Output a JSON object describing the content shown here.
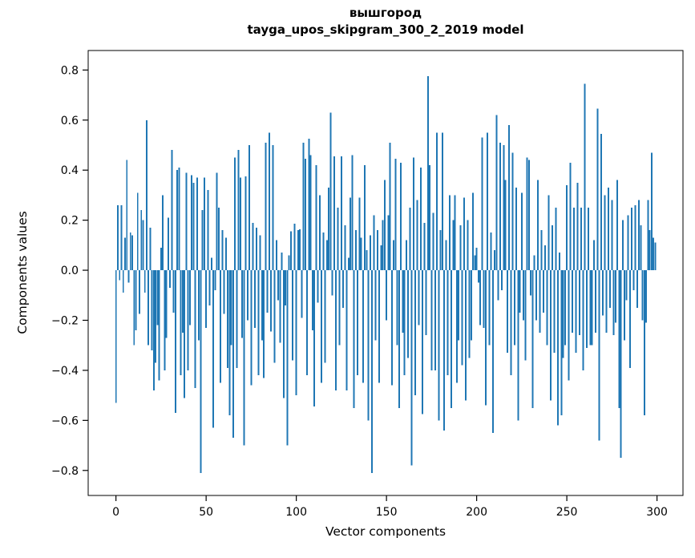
{
  "figure": {
    "title_line1": "вышгород",
    "title_line2": "tayga_upos_skipgram_300_2_2019 model",
    "xlabel": "Vector components",
    "ylabel": "Components values"
  },
  "chart_data": {
    "type": "bar",
    "title": "вышгород — tayga_upos_skipgram_300_2_2019 model",
    "xlabel": "Vector components",
    "ylabel": "Components values",
    "legend": "none",
    "grid": false,
    "bar_color": "#1f77b4",
    "axis_color": "#000000",
    "n_components": 300,
    "xlim": [
      -15.4,
      314.4
    ],
    "ylim": [
      -0.9,
      0.878
    ],
    "bar_width_units": 0.8,
    "xticks": [
      0,
      50,
      100,
      150,
      200,
      250,
      300
    ],
    "xtick_labels": [
      "0",
      "50",
      "100",
      "150",
      "200",
      "250",
      "300"
    ],
    "yticks": [
      0.8,
      0.6,
      0.4,
      0.2,
      0.0,
      -0.2,
      -0.4,
      -0.6,
      -0.8
    ],
    "ytick_labels": [
      "0.8",
      "0.6",
      "0.4",
      "0.2",
      "0.0",
      "−0.2",
      "−0.4",
      "−0.6",
      "−0.8"
    ],
    "values": [
      -0.53,
      0.26,
      -0.04,
      0.26,
      -0.09,
      0.13,
      0.44,
      -0.05,
      0.15,
      0.14,
      -0.3,
      -0.24,
      0.31,
      -0.175,
      0.24,
      0.2,
      -0.09,
      0.6,
      -0.3,
      0.17,
      -0.32,
      -0.48,
      -0.37,
      -0.22,
      -0.44,
      0.09,
      0.3,
      -0.4,
      -0.27,
      0.21,
      -0.07,
      0.48,
      -0.17,
      -0.57,
      0.4,
      0.41,
      -0.42,
      -0.25,
      -0.51,
      0.39,
      -0.4,
      -0.22,
      0.38,
      0.35,
      -0.47,
      0.37,
      -0.28,
      -0.81,
      0.24,
      0.37,
      -0.23,
      0.32,
      -0.14,
      0.05,
      -0.63,
      -0.08,
      0.39,
      0.25,
      -0.45,
      0.16,
      -0.175,
      0.13,
      -0.39,
      -0.58,
      -0.3,
      -0.67,
      0.45,
      -0.39,
      0.48,
      0.37,
      -0.27,
      -0.7,
      0.375,
      -0.2,
      0.5,
      -0.46,
      0.19,
      -0.23,
      0.17,
      -0.42,
      0.14,
      -0.28,
      -0.43,
      0.51,
      -0.17,
      0.55,
      -0.245,
      0.5,
      -0.37,
      0.12,
      -0.12,
      -0.29,
      0.07,
      -0.51,
      -0.14,
      -0.7,
      0.06,
      0.156,
      -0.36,
      0.186,
      -0.5,
      0.16,
      0.163,
      -0.19,
      0.51,
      0.445,
      -0.42,
      0.525,
      0.46,
      -0.24,
      -0.545,
      0.42,
      -0.13,
      0.3,
      -0.45,
      0.15,
      -0.37,
      0.12,
      0.33,
      0.63,
      -0.1,
      0.455,
      -0.48,
      0.25,
      -0.3,
      0.455,
      -0.15,
      0.18,
      -0.48,
      0.05,
      0.29,
      0.46,
      -0.55,
      0.16,
      -0.42,
      0.29,
      0.13,
      -0.45,
      0.42,
      0.08,
      -0.6,
      0.14,
      -0.81,
      0.22,
      -0.28,
      0.16,
      -0.45,
      0.1,
      0.2,
      0.36,
      -0.2,
      0.22,
      0.51,
      -0.46,
      0.12,
      0.445,
      -0.3,
      -0.55,
      0.43,
      -0.25,
      -0.42,
      0.12,
      -0.35,
      0.25,
      -0.78,
      0.45,
      -0.5,
      0.28,
      -0.22,
      0.41,
      -0.575,
      0.19,
      -0.26,
      0.775,
      0.42,
      -0.4,
      0.23,
      -0.4,
      0.55,
      -0.6,
      0.16,
      0.55,
      -0.64,
      0.12,
      -0.42,
      0.3,
      -0.55,
      0.2,
      0.3,
      -0.45,
      -0.28,
      0.18,
      -0.38,
      0.29,
      -0.52,
      0.2,
      -0.35,
      -0.28,
      0.31,
      0.06,
      0.09,
      -0.05,
      -0.22,
      0.53,
      -0.23,
      -0.54,
      0.55,
      -0.3,
      0.15,
      -0.65,
      0.08,
      0.62,
      -0.12,
      0.51,
      -0.08,
      0.5,
      0.36,
      -0.33,
      0.58,
      -0.42,
      0.47,
      -0.3,
      0.33,
      -0.6,
      -0.17,
      0.31,
      -0.2,
      -0.36,
      0.45,
      0.44,
      -0.1,
      -0.55,
      0.06,
      -0.2,
      0.36,
      -0.25,
      0.16,
      -0.17,
      0.1,
      -0.3,
      0.3,
      -0.52,
      0.18,
      -0.33,
      0.25,
      -0.62,
      0.07,
      -0.58,
      -0.35,
      -0.3,
      0.34,
      -0.44,
      0.43,
      -0.25,
      0.25,
      -0.33,
      0.35,
      -0.26,
      0.25,
      -0.4,
      0.745,
      -0.31,
      0.25,
      -0.3,
      -0.3,
      0.12,
      -0.25,
      0.645,
      -0.68,
      0.545,
      -0.18,
      0.3,
      -0.25,
      0.33,
      -0.15,
      0.28,
      -0.26,
      -0.21,
      0.36,
      -0.55,
      -0.75,
      0.2,
      -0.28,
      -0.12,
      0.22,
      -0.39,
      0.25,
      -0.08,
      0.26,
      -0.15,
      0.28,
      0.18,
      -0.2,
      -0.58,
      -0.21,
      0.28,
      0.16,
      0.47,
      0.13,
      0.11
    ]
  }
}
